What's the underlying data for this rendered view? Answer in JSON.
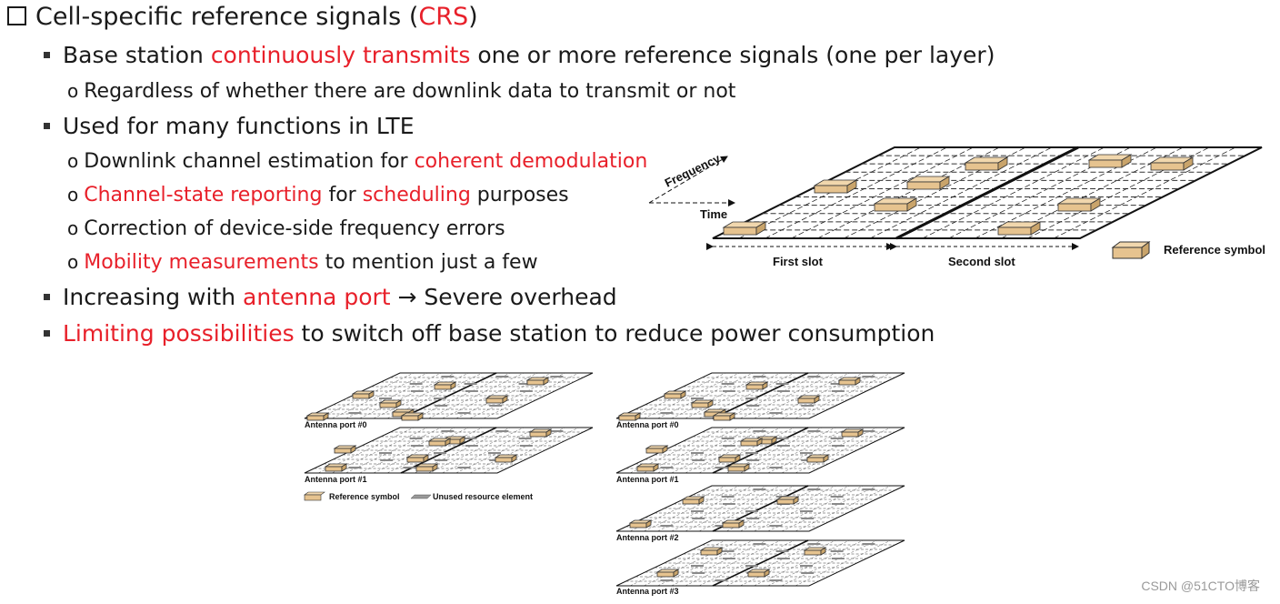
{
  "bullets": {
    "title": {
      "pre": "Cell-specific reference signals (",
      "red": "CRS",
      "post": ")"
    },
    "b1": {
      "pre": "Base station ",
      "red": "continuously transmits",
      "post": " one or more reference signals (one per layer)"
    },
    "b1a": "Regardless of whether there are downlink data to transmit or not",
    "b2": "Used for many functions in LTE",
    "b2a": {
      "pre": "Downlink channel estimation for ",
      "red": "coherent demodulation"
    },
    "b2b": {
      "red1": "Channel-state reporting",
      "mid": " for ",
      "red2": "scheduling",
      "post": " purposes"
    },
    "b2c": "Correction of device-side frequency errors",
    "b2d": {
      "red": "Mobility measurements",
      "post": " to mention just a few"
    },
    "b3": {
      "pre": "Increasing with ",
      "red": "antenna port",
      "arrow": "→",
      "post": " Severe overhead"
    },
    "b4": {
      "red": "Limiting possibilities",
      "post": " to switch off base station to reduce power consumption"
    }
  },
  "main_diagram": {
    "frequency_label": "Frequency",
    "time_label": "Time",
    "first_slot": "First slot",
    "second_slot": "Second slot",
    "legend_reference": "Reference symbol"
  },
  "left_stack": {
    "ports": [
      "Antenna port #0",
      "Antenna port #1"
    ],
    "legend_reference": "Reference symbol",
    "legend_unused": "Unused resource element"
  },
  "right_stack": {
    "ports": [
      "Antenna port #0",
      "Antenna port #1",
      "Antenna port #2",
      "Antenna port #3"
    ]
  },
  "colors": {
    "accent_red": "#e8202a",
    "block_fill": "#e6c38f"
  },
  "watermark": "CSDN @51CTO博客"
}
